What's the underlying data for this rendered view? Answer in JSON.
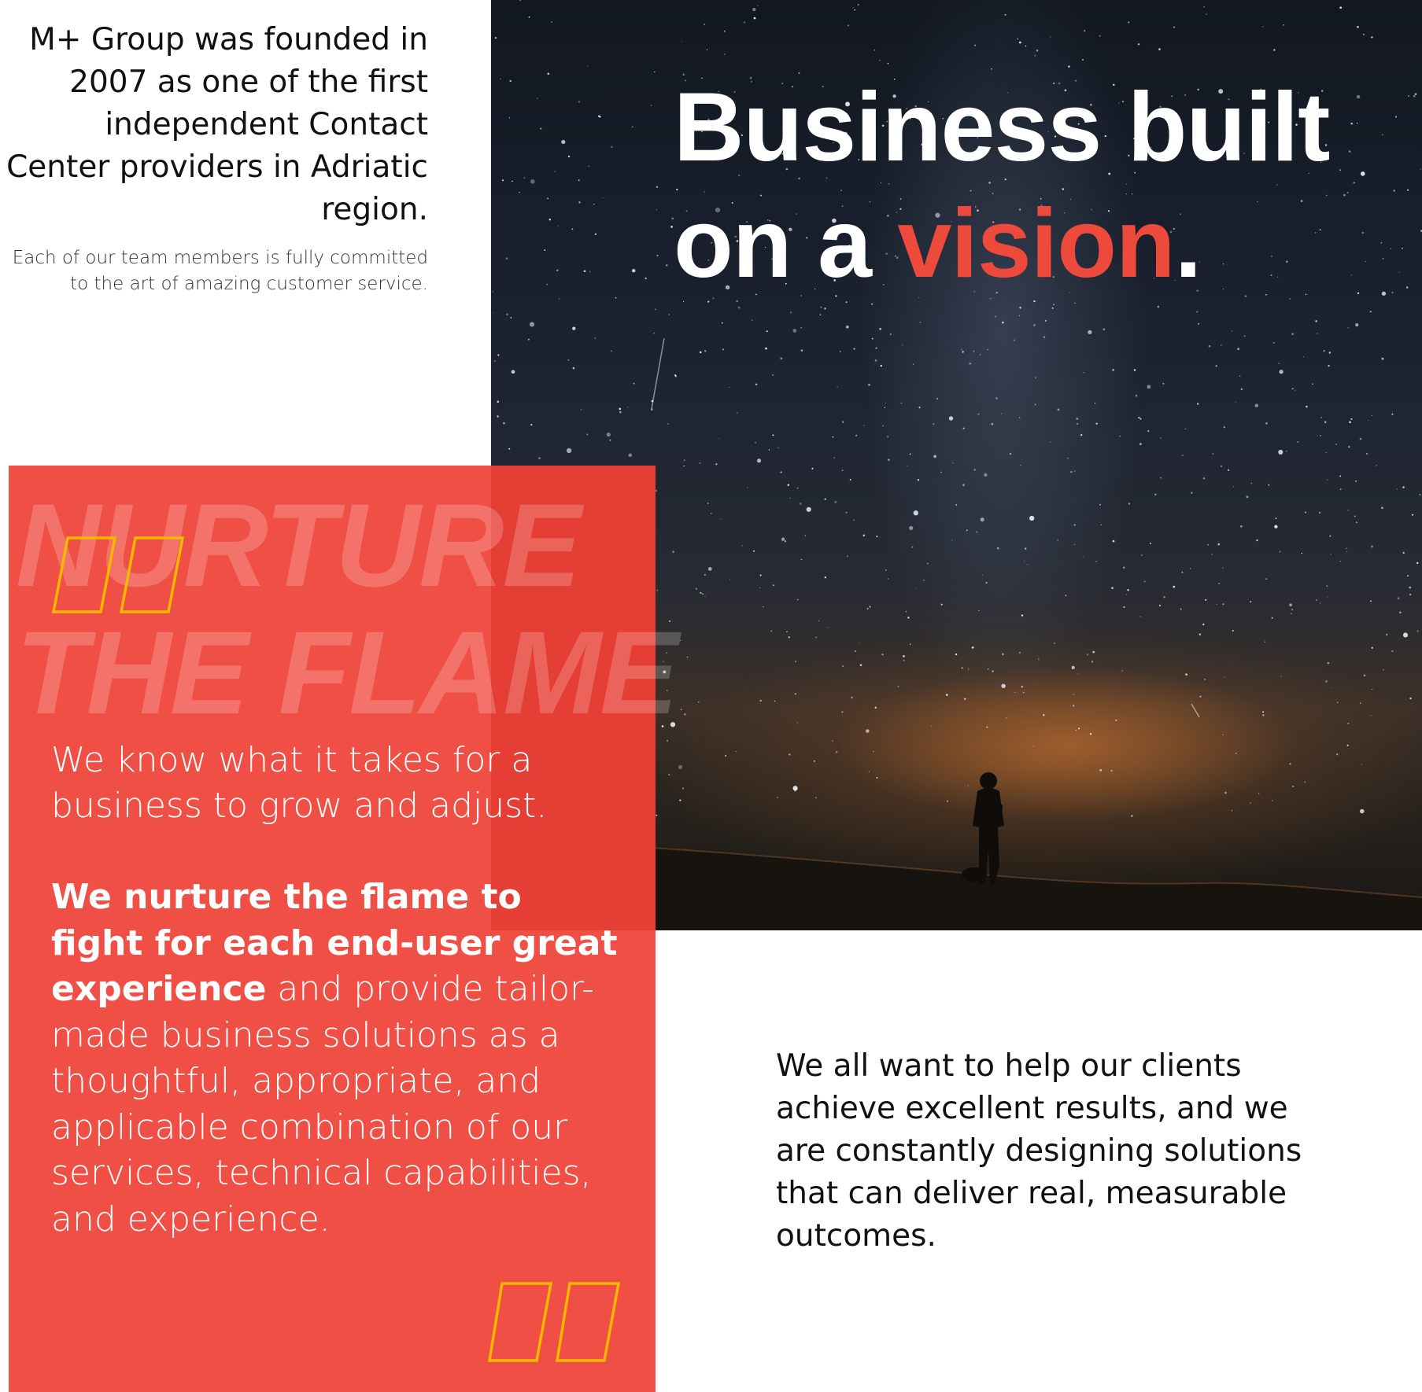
{
  "intro": {
    "lead": "M+ Group was founded in 2007 as one of the first independent Contact Center providers in Adriatic region.",
    "sub": "Each of our team members is fully committed to the art of amazing customer service."
  },
  "hero": {
    "headline_line1": "Business built",
    "headline_pre": "on a ",
    "headline_accent": "vision",
    "headline_end": ".",
    "accent_color": "#ee4a3c"
  },
  "panel": {
    "bg_color": "#f04f45",
    "quote_color": "#f5b800",
    "watermark_line1": "NURTURE",
    "watermark_line2": "THE FLAME",
    "p1": "We know what it takes for a business to grow and adjust.",
    "p2_bold": "We nurture the flame to fight for each end-user great experience",
    "p2_rest": " and provide tailor-made business solutions as a thoughtful, appropriate, and applicable combination of our services, technical capabilities, and experience."
  },
  "closing": {
    "text": "We all want to help our clients achieve excellent results, and we are constantly designing solutions that can deliver real, measurable outcomes."
  }
}
